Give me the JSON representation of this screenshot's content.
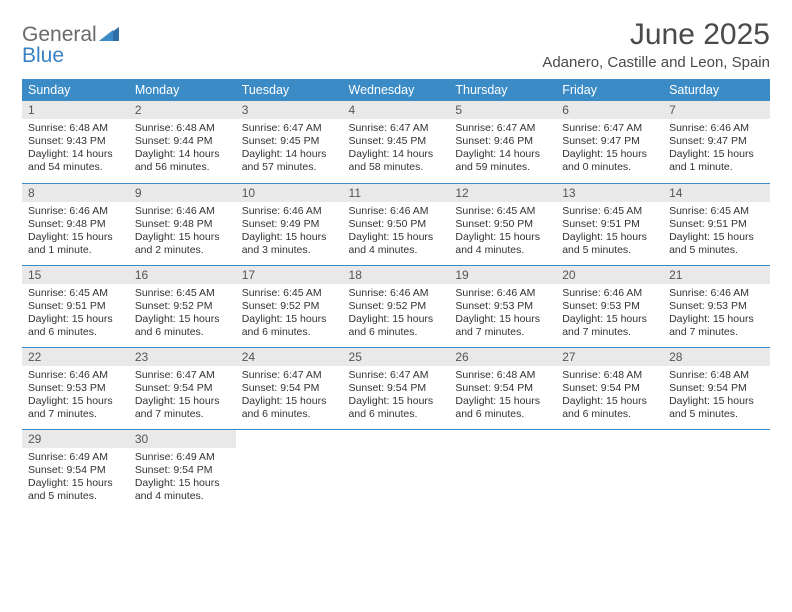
{
  "brand": {
    "word1": "General",
    "word2": "Blue"
  },
  "title": "June 2025",
  "location": "Adanero, Castille and Leon, Spain",
  "colors": {
    "header_bg": "#3b8bc6",
    "header_text": "#ffffff",
    "daynum_bg": "#e9e9e9",
    "grid_line": "#3b8bc6",
    "brand_gray": "#6a6a6a",
    "brand_blue": "#3b82c4"
  },
  "weekdays": [
    "Sunday",
    "Monday",
    "Tuesday",
    "Wednesday",
    "Thursday",
    "Friday",
    "Saturday"
  ],
  "weeks": [
    [
      {
        "n": "1",
        "sunrise": "Sunrise: 6:48 AM",
        "sunset": "Sunset: 9:43 PM",
        "day": "Daylight: 14 hours and 54 minutes."
      },
      {
        "n": "2",
        "sunrise": "Sunrise: 6:48 AM",
        "sunset": "Sunset: 9:44 PM",
        "day": "Daylight: 14 hours and 56 minutes."
      },
      {
        "n": "3",
        "sunrise": "Sunrise: 6:47 AM",
        "sunset": "Sunset: 9:45 PM",
        "day": "Daylight: 14 hours and 57 minutes."
      },
      {
        "n": "4",
        "sunrise": "Sunrise: 6:47 AM",
        "sunset": "Sunset: 9:45 PM",
        "day": "Daylight: 14 hours and 58 minutes."
      },
      {
        "n": "5",
        "sunrise": "Sunrise: 6:47 AM",
        "sunset": "Sunset: 9:46 PM",
        "day": "Daylight: 14 hours and 59 minutes."
      },
      {
        "n": "6",
        "sunrise": "Sunrise: 6:47 AM",
        "sunset": "Sunset: 9:47 PM",
        "day": "Daylight: 15 hours and 0 minutes."
      },
      {
        "n": "7",
        "sunrise": "Sunrise: 6:46 AM",
        "sunset": "Sunset: 9:47 PM",
        "day": "Daylight: 15 hours and 1 minute."
      }
    ],
    [
      {
        "n": "8",
        "sunrise": "Sunrise: 6:46 AM",
        "sunset": "Sunset: 9:48 PM",
        "day": "Daylight: 15 hours and 1 minute."
      },
      {
        "n": "9",
        "sunrise": "Sunrise: 6:46 AM",
        "sunset": "Sunset: 9:48 PM",
        "day": "Daylight: 15 hours and 2 minutes."
      },
      {
        "n": "10",
        "sunrise": "Sunrise: 6:46 AM",
        "sunset": "Sunset: 9:49 PM",
        "day": "Daylight: 15 hours and 3 minutes."
      },
      {
        "n": "11",
        "sunrise": "Sunrise: 6:46 AM",
        "sunset": "Sunset: 9:50 PM",
        "day": "Daylight: 15 hours and 4 minutes."
      },
      {
        "n": "12",
        "sunrise": "Sunrise: 6:45 AM",
        "sunset": "Sunset: 9:50 PM",
        "day": "Daylight: 15 hours and 4 minutes."
      },
      {
        "n": "13",
        "sunrise": "Sunrise: 6:45 AM",
        "sunset": "Sunset: 9:51 PM",
        "day": "Daylight: 15 hours and 5 minutes."
      },
      {
        "n": "14",
        "sunrise": "Sunrise: 6:45 AM",
        "sunset": "Sunset: 9:51 PM",
        "day": "Daylight: 15 hours and 5 minutes."
      }
    ],
    [
      {
        "n": "15",
        "sunrise": "Sunrise: 6:45 AM",
        "sunset": "Sunset: 9:51 PM",
        "day": "Daylight: 15 hours and 6 minutes."
      },
      {
        "n": "16",
        "sunrise": "Sunrise: 6:45 AM",
        "sunset": "Sunset: 9:52 PM",
        "day": "Daylight: 15 hours and 6 minutes."
      },
      {
        "n": "17",
        "sunrise": "Sunrise: 6:45 AM",
        "sunset": "Sunset: 9:52 PM",
        "day": "Daylight: 15 hours and 6 minutes."
      },
      {
        "n": "18",
        "sunrise": "Sunrise: 6:46 AM",
        "sunset": "Sunset: 9:52 PM",
        "day": "Daylight: 15 hours and 6 minutes."
      },
      {
        "n": "19",
        "sunrise": "Sunrise: 6:46 AM",
        "sunset": "Sunset: 9:53 PM",
        "day": "Daylight: 15 hours and 7 minutes."
      },
      {
        "n": "20",
        "sunrise": "Sunrise: 6:46 AM",
        "sunset": "Sunset: 9:53 PM",
        "day": "Daylight: 15 hours and 7 minutes."
      },
      {
        "n": "21",
        "sunrise": "Sunrise: 6:46 AM",
        "sunset": "Sunset: 9:53 PM",
        "day": "Daylight: 15 hours and 7 minutes."
      }
    ],
    [
      {
        "n": "22",
        "sunrise": "Sunrise: 6:46 AM",
        "sunset": "Sunset: 9:53 PM",
        "day": "Daylight: 15 hours and 7 minutes."
      },
      {
        "n": "23",
        "sunrise": "Sunrise: 6:47 AM",
        "sunset": "Sunset: 9:54 PM",
        "day": "Daylight: 15 hours and 7 minutes."
      },
      {
        "n": "24",
        "sunrise": "Sunrise: 6:47 AM",
        "sunset": "Sunset: 9:54 PM",
        "day": "Daylight: 15 hours and 6 minutes."
      },
      {
        "n": "25",
        "sunrise": "Sunrise: 6:47 AM",
        "sunset": "Sunset: 9:54 PM",
        "day": "Daylight: 15 hours and 6 minutes."
      },
      {
        "n": "26",
        "sunrise": "Sunrise: 6:48 AM",
        "sunset": "Sunset: 9:54 PM",
        "day": "Daylight: 15 hours and 6 minutes."
      },
      {
        "n": "27",
        "sunrise": "Sunrise: 6:48 AM",
        "sunset": "Sunset: 9:54 PM",
        "day": "Daylight: 15 hours and 6 minutes."
      },
      {
        "n": "28",
        "sunrise": "Sunrise: 6:48 AM",
        "sunset": "Sunset: 9:54 PM",
        "day": "Daylight: 15 hours and 5 minutes."
      }
    ],
    [
      {
        "n": "29",
        "sunrise": "Sunrise: 6:49 AM",
        "sunset": "Sunset: 9:54 PM",
        "day": "Daylight: 15 hours and 5 minutes."
      },
      {
        "n": "30",
        "sunrise": "Sunrise: 6:49 AM",
        "sunset": "Sunset: 9:54 PM",
        "day": "Daylight: 15 hours and 4 minutes."
      },
      null,
      null,
      null,
      null,
      null
    ]
  ]
}
